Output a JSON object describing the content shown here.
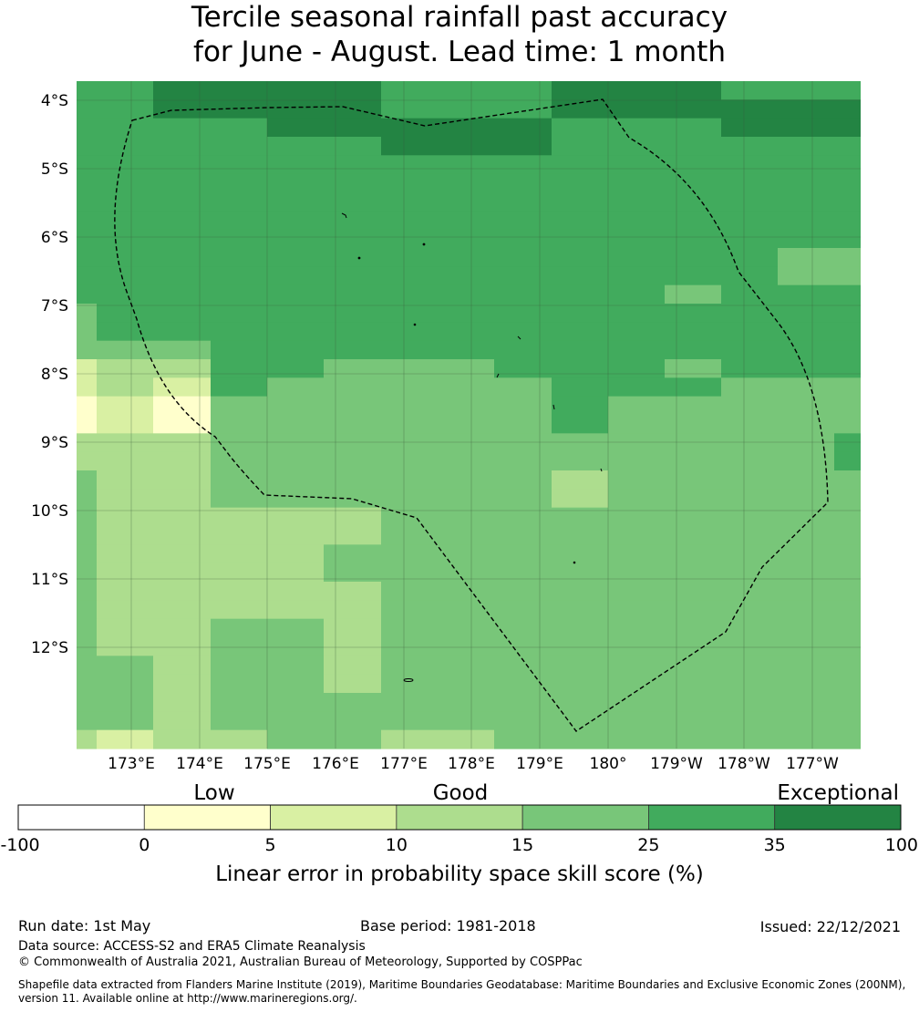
{
  "title": {
    "line1": "Tercile seasonal rainfall past accuracy",
    "line2": "for June - August. Lead time: 1 month"
  },
  "colors": {
    "bin_lt0": "#ffffff",
    "bin_0_5": "#ffffcc",
    "bin_5_10": "#d9f0a3",
    "bin_10_15": "#addd8e",
    "bin_15_25": "#78c679",
    "bin_25_35": "#41ab5d",
    "bin_35_100": "#238443",
    "coast": "#000000",
    "eez_boundary": "#000000",
    "gridline": "#3a5a3a"
  },
  "map": {
    "lat_labels": [
      "4°S",
      "5°S",
      "6°S",
      "7°S",
      "8°S",
      "9°S",
      "10°S",
      "11°S",
      "12°S"
    ],
    "lon_labels": [
      "173°E",
      "174°E",
      "175°E",
      "176°E",
      "177°E",
      "178°E",
      "179°E",
      "180°",
      "179°W",
      "178°W",
      "177°W"
    ],
    "legend_categories": {
      "low": "Low",
      "good": "Good",
      "exceptional": "Exceptional"
    },
    "skill_grid_bins": [
      "5556666555566665555",
      "5556666555556666666",
      "5555566666665556666",
      "5555555666655555555",
      "5555555555555555555",
      "5555555555555555555",
      "5555555555555555555",
      "5555555555555555555",
      "5555555555555555555",
      "5555555555555555444",
      "5555555555555555444",
      "5555555555555545555",
      "4555555555555555555",
      "4555555555555555555",
      "4444555555555555555",
      "2333554444555545555",
      "2332544444455554444",
      "1221444444455444444",
      "1221444444455444444",
      "3333444444444444445",
      "3333444444444444445",
      "4333444444433444444",
      "4333444444433444444",
      "4333333444444444444",
      "4333333444444444444",
      "4333334444444444444",
      "4333334444444444444",
      "4333333444444444444",
      "4333333444444444444",
      "4333443444444444444",
      "4333443444444444444",
      "4433443444444444444",
      "4433443444444444444",
      "4443444444444444444",
      "4443444444444444444",
      "3223344433444444444"
    ]
  },
  "colorbar": {
    "ticks": [
      "-100",
      "0",
      "5",
      "10",
      "15",
      "25",
      "35",
      "100"
    ],
    "label": "Linear error in probability space skill score (%)"
  },
  "footer": {
    "run_date": "Run date: 1st May",
    "base_period": "Base period: 1981-2018",
    "issued": "Issued: 22/12/2021",
    "data_source": "Data source: ACCESS-S2 and ERA5 Climate Reanalysis",
    "copyright": "© Commonwealth of Australia 2021, Australian Bureau of Meteorology, Supported by COSPPac",
    "shapefile_line1": "Shapefile data extracted from Flanders Marine Institute (2019), Maritime Boundaries Geodatabase: Maritime Boundaries and Exclusive Economic Zones (200NM),",
    "shapefile_line2": "version 11. Available online at http://www.marineregions.org/."
  }
}
